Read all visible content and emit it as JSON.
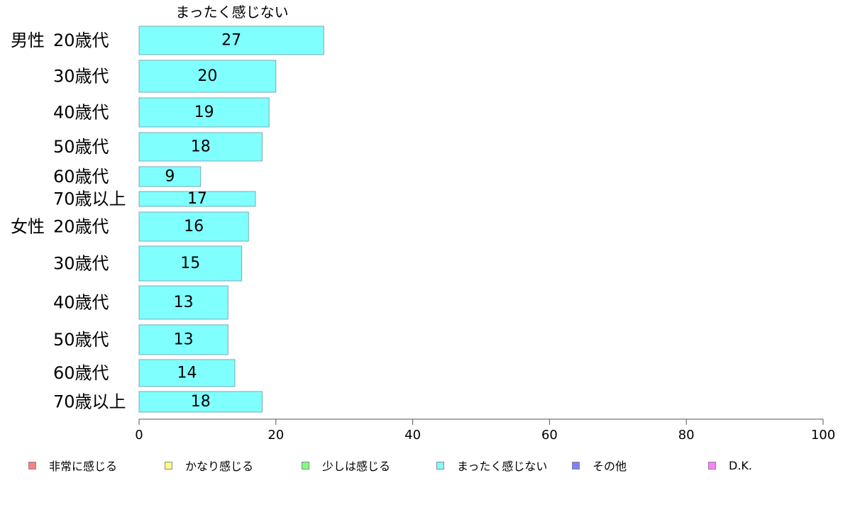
{
  "chart_data": {
    "type": "bar",
    "orientation": "horizontal",
    "title": "まったく感じない",
    "groups": [
      "男性",
      "女性"
    ],
    "categories": [
      "20歳代",
      "30歳代",
      "40歳代",
      "50歳代",
      "60歳代",
      "70歳以上",
      "20歳代",
      "30歳代",
      "40歳代",
      "50歳代",
      "60歳代",
      "70歳以上"
    ],
    "series": [
      {
        "name": "まったく感じない",
        "color": "#80ffff",
        "values": [
          27,
          20,
          19,
          18,
          9,
          17,
          16,
          15,
          13,
          13,
          14,
          18
        ]
      }
    ],
    "xlim": [
      0,
      100
    ],
    "xticks": [
      0,
      20,
      40,
      60,
      80,
      100
    ],
    "grid": false
  },
  "legend": [
    {
      "label": "非常に感じる",
      "color": "#ff8080"
    },
    {
      "label": "かなり感じる",
      "color": "#ffff80"
    },
    {
      "label": "少しは感じる",
      "color": "#80ff80"
    },
    {
      "label": "まったく感じない",
      "color": "#80ffff"
    },
    {
      "label": "その他",
      "color": "#8080ff"
    },
    {
      "label": "D.K.",
      "color": "#ff80ff"
    }
  ]
}
